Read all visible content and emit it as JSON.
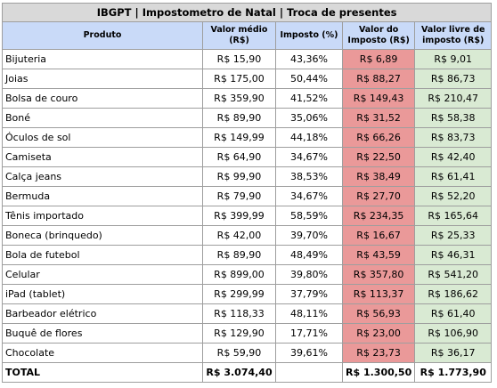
{
  "title": "IBGPT | Impostometro de Natal | Troca de presentes",
  "headers": {
    "produto": "Produto",
    "valor_medio": "Valor médio (R$)",
    "imposto_pct": "Imposto (%)",
    "valor_imposto": "Valor do Imposto (R$)",
    "valor_livre": "Valor livre de imposto (R$)"
  },
  "rows": [
    {
      "produto": "Bijuteria",
      "valor_medio": "R$ 15,90",
      "imposto_pct": "43,36%",
      "valor_imposto": "R$ 6,89",
      "valor_livre": "R$ 9,01"
    },
    {
      "produto": "Joias",
      "valor_medio": "R$ 175,00",
      "imposto_pct": "50,44%",
      "valor_imposto": "R$ 88,27",
      "valor_livre": "R$ 86,73"
    },
    {
      "produto": "Bolsa de couro",
      "valor_medio": "R$ 359,90",
      "imposto_pct": "41,52%",
      "valor_imposto": "R$ 149,43",
      "valor_livre": "R$ 210,47"
    },
    {
      "produto": "Boné",
      "valor_medio": "R$ 89,90",
      "imposto_pct": "35,06%",
      "valor_imposto": "R$ 31,52",
      "valor_livre": "R$ 58,38"
    },
    {
      "produto": "Óculos de sol",
      "valor_medio": "R$ 149,99",
      "imposto_pct": "44,18%",
      "valor_imposto": "R$ 66,26",
      "valor_livre": "R$ 83,73"
    },
    {
      "produto": "Camiseta",
      "valor_medio": "R$ 64,90",
      "imposto_pct": "34,67%",
      "valor_imposto": "R$ 22,50",
      "valor_livre": "R$ 42,40"
    },
    {
      "produto": "Calça jeans",
      "valor_medio": "R$ 99,90",
      "imposto_pct": "38,53%",
      "valor_imposto": "R$ 38,49",
      "valor_livre": "R$ 61,41"
    },
    {
      "produto": "Bermuda",
      "valor_medio": "R$ 79,90",
      "imposto_pct": "34,67%",
      "valor_imposto": "R$ 27,70",
      "valor_livre": "R$ 52,20"
    },
    {
      "produto": "Tênis importado",
      "valor_medio": "R$ 399,99",
      "imposto_pct": "58,59%",
      "valor_imposto": "R$ 234,35",
      "valor_livre": "R$ 165,64"
    },
    {
      "produto": "Boneca (brinquedo)",
      "valor_medio": "R$ 42,00",
      "imposto_pct": "39,70%",
      "valor_imposto": "R$ 16,67",
      "valor_livre": "R$ 25,33"
    },
    {
      "produto": "Bola de futebol",
      "valor_medio": "R$ 89,90",
      "imposto_pct": "48,49%",
      "valor_imposto": "R$ 43,59",
      "valor_livre": "R$ 46,31"
    },
    {
      "produto": "Celular",
      "valor_medio": "R$ 899,00",
      "imposto_pct": "39,80%",
      "valor_imposto": "R$ 357,80",
      "valor_livre": "R$ 541,20"
    },
    {
      "produto": "iPad (tablet)",
      "valor_medio": "R$ 299,99",
      "imposto_pct": "37,79%",
      "valor_imposto": "R$ 113,37",
      "valor_livre": "R$ 186,62"
    },
    {
      "produto": "Barbeador elétrico",
      "valor_medio": "R$ 118,33",
      "imposto_pct": "48,11%",
      "valor_imposto": "R$ 56,93",
      "valor_livre": "R$ 61,40"
    },
    {
      "produto": "Buquê de flores",
      "valor_medio": "R$ 129,90",
      "imposto_pct": "17,71%",
      "valor_imposto": "R$ 23,00",
      "valor_livre": "R$ 106,90"
    },
    {
      "produto": "Chocolate",
      "valor_medio": "R$ 59,90",
      "imposto_pct": "39,61%",
      "valor_imposto": "R$ 23,73",
      "valor_livre": "R$ 36,17"
    }
  ],
  "total": {
    "label": "TOTAL",
    "valor_medio": "R$ 3.074,40",
    "imposto_pct": "",
    "valor_imposto": "R$ 1.300,50",
    "valor_livre": "R$ 1.773,90"
  },
  "colors": {
    "title_bg": "#d9d9d9",
    "header_bg": "#c9daf8",
    "tax_value_bg": "#ea9999",
    "tax_free_bg": "#d9ead3"
  }
}
